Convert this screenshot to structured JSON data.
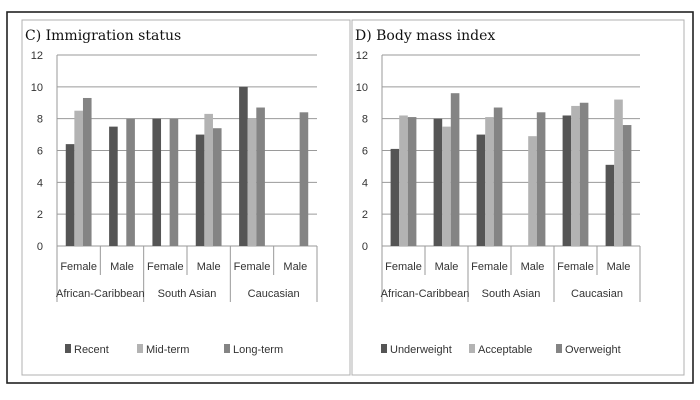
{
  "chart_data": [
    {
      "type": "bar",
      "title": "C) Immigration status",
      "ylim": [
        0,
        12
      ],
      "yticks": [
        0,
        2,
        4,
        6,
        8,
        10,
        12
      ],
      "grid": true,
      "legend_position": "bottom",
      "categories": [
        "Female",
        "Male",
        "Female",
        "Male",
        "Female",
        "Male"
      ],
      "groups": [
        "African-Caribbean",
        "South Asian",
        "Caucasian"
      ],
      "series": [
        {
          "name": "Recent",
          "color": "#555555",
          "values": [
            6.4,
            7.5,
            8.0,
            7.0,
            10.0,
            null
          ]
        },
        {
          "name": "Mid-term",
          "color": "#b3b3b3",
          "values": [
            8.5,
            null,
            null,
            8.3,
            8.0,
            null
          ]
        },
        {
          "name": "Long-term",
          "color": "#848484",
          "values": [
            9.3,
            8.0,
            8.0,
            7.4,
            8.7,
            8.4
          ]
        }
      ]
    },
    {
      "type": "bar",
      "title": "D) Body mass index",
      "ylim": [
        0,
        12
      ],
      "yticks": [
        0,
        2,
        4,
        6,
        8,
        10,
        12
      ],
      "grid": true,
      "legend_position": "bottom",
      "categories": [
        "Female",
        "Male",
        "Female",
        "Male",
        "Female",
        "Male"
      ],
      "groups": [
        "African-Caribbean",
        "South Asian",
        "Caucasian"
      ],
      "series": [
        {
          "name": "Underweight",
          "color": "#555555",
          "values": [
            6.1,
            8.0,
            7.0,
            null,
            8.2,
            5.1
          ]
        },
        {
          "name": "Acceptable",
          "color": "#b3b3b3",
          "values": [
            8.2,
            7.5,
            8.1,
            6.9,
            8.8,
            9.2
          ]
        },
        {
          "name": "Overweight",
          "color": "#848484",
          "values": [
            8.1,
            9.6,
            8.7,
            8.4,
            9.0,
            7.6
          ]
        }
      ]
    }
  ]
}
